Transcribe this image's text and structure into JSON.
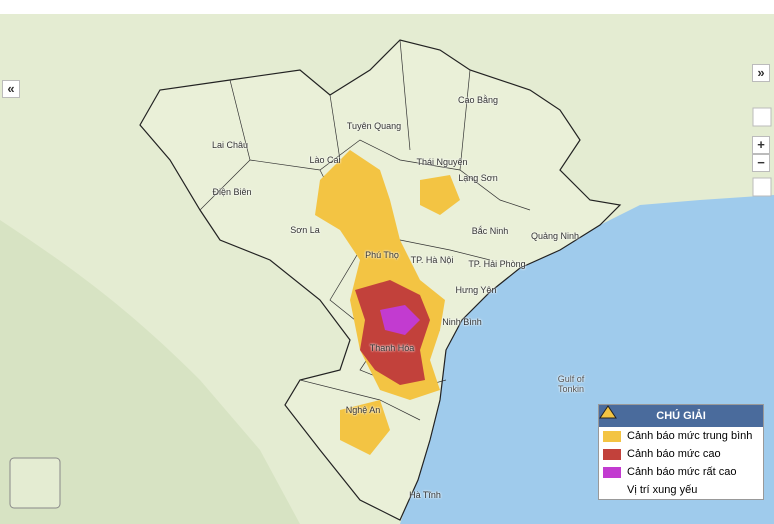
{
  "map": {
    "labels": [
      {
        "text": "Lai Châu"
      },
      {
        "text": "Lào Cai"
      },
      {
        "text": "Điện Biên"
      },
      {
        "text": "Sơn La"
      },
      {
        "text": "Tuyên Quang"
      },
      {
        "text": "Cao Bằng"
      },
      {
        "text": "Thái Nguyên"
      },
      {
        "text": "Lạng Sơn"
      },
      {
        "text": "Bắc Ninh"
      },
      {
        "text": "Quảng Ninh"
      },
      {
        "text": "Phú Thọ"
      },
      {
        "text": "TP. Hà Nội"
      },
      {
        "text": "TP. Hải Phòng"
      },
      {
        "text": "Hưng Yên"
      },
      {
        "text": "Ninh Bình"
      },
      {
        "text": "Thanh Hóa"
      },
      {
        "text": "Nghệ An"
      },
      {
        "text": "Hà Tĩnh"
      },
      {
        "text": "Gulf of Tonkin"
      }
    ]
  },
  "legend": {
    "title": "CHÚ GIẢI",
    "items": [
      {
        "label": "Cảnh báo mức trung bình",
        "color": "#f3c443"
      },
      {
        "label": "Cảnh báo mức cao",
        "color": "#c2413b"
      },
      {
        "label": "Cảnh báo mức rất cao",
        "color": "#c23bd0"
      },
      {
        "label": "Vị trí xung yếu"
      }
    ]
  },
  "controls": {
    "expand_right": "»",
    "collapse_left": "«",
    "zoom_in": "+",
    "zoom_out": "−"
  }
}
